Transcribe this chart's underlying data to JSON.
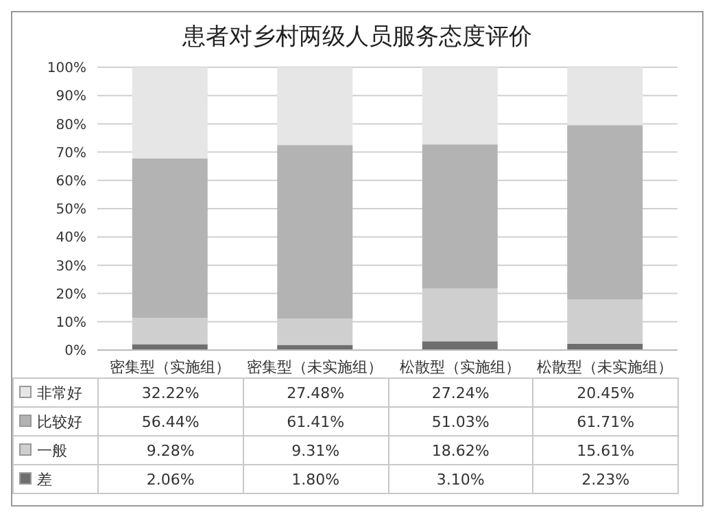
{
  "chart_data": {
    "type": "bar",
    "title": "患者对乡村两级人员服务态度评价",
    "categories": [
      "密集型（实施组）",
      "密集型（未实施组）",
      "松散型（实施组）",
      "松散型（未实施组）"
    ],
    "stacked": true,
    "series": [
      {
        "name": "差",
        "color": "#6e6e6e",
        "values": [
          2.06,
          1.8,
          3.1,
          2.23
        ],
        "value_labels": [
          "2.06%",
          "1.80%",
          "3.10%",
          "2.23%"
        ]
      },
      {
        "name": "一般",
        "color": "#cfcfcf",
        "values": [
          9.28,
          9.31,
          18.62,
          15.61
        ],
        "value_labels": [
          "9.28%",
          "9.31%",
          "18.62%",
          "15.61%"
        ]
      },
      {
        "name": "比较好",
        "color": "#b3b3b3",
        "values": [
          56.44,
          61.41,
          51.03,
          61.71
        ],
        "value_labels": [
          "56.44%",
          "61.41%",
          "51.03%",
          "61.71%"
        ]
      },
      {
        "name": "非常好",
        "color": "#e6e6e6",
        "values": [
          32.22,
          27.48,
          27.24,
          20.45
        ],
        "value_labels": [
          "32.22%",
          "27.48%",
          "27.24%",
          "20.45%"
        ]
      }
    ],
    "ylim": [
      0,
      100
    ],
    "yticks": [
      {
        "value": 0,
        "label": "0%"
      },
      {
        "value": 10,
        "label": "10%"
      },
      {
        "value": 20,
        "label": "20%"
      },
      {
        "value": 30,
        "label": "30%"
      },
      {
        "value": 40,
        "label": "40%"
      },
      {
        "value": 50,
        "label": "50%"
      },
      {
        "value": 60,
        "label": "60%"
      },
      {
        "value": 70,
        "label": "70%"
      },
      {
        "value": 80,
        "label": "80%"
      },
      {
        "value": 90,
        "label": "90%"
      },
      {
        "value": 100,
        "label": "100%"
      }
    ],
    "grid": "y",
    "legend": "bottom"
  }
}
